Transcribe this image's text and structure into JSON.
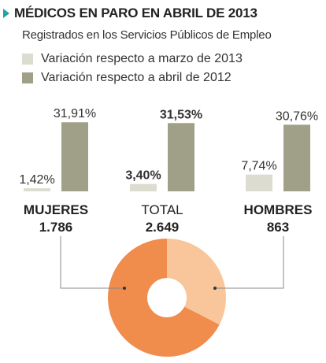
{
  "header": {
    "title": "MÉDICOS EN PARO EN ABRIL DE 2013",
    "subtitle": "Registrados en los Servicios Públicos de Empleo"
  },
  "legend": [
    {
      "label": "Variación respecto a marzo de 2013",
      "color": "#dcdcd0"
    },
    {
      "label": "Variación respecto a abril de 2012",
      "color": "#a0a088"
    }
  ],
  "colors": {
    "accent": "#1ea7a0",
    "bar_march": "#dcdcd0",
    "bar_april": "#a0a088",
    "pie_mujeres": "#f08c4c",
    "pie_hombres": "#f8c69a",
    "connector": "#888888"
  },
  "chart_data": [
    {
      "type": "bar",
      "categories": [
        "MUJERES",
        "TOTAL",
        "HOMBRES"
      ],
      "series": [
        {
          "name": "Variación respecto a marzo de 2013",
          "values": [
            1.42,
            3.4,
            7.74
          ],
          "labels": [
            "1,42%",
            "3,40%",
            "7,74%"
          ]
        },
        {
          "name": "Variación respecto a abril de 2012",
          "values": [
            31.91,
            31.53,
            30.76
          ],
          "labels": [
            "31,91%",
            "31,53%",
            "30,76%"
          ]
        }
      ],
      "category_counts": [
        "1.786",
        "2.649",
        "863"
      ],
      "bold_categories": [
        "MUJERES",
        "HOMBRES"
      ],
      "bold_value_category": "TOTAL",
      "ylim": [
        0,
        32
      ]
    },
    {
      "type": "pie",
      "donut": true,
      "labels": [
        "MUJERES",
        "HOMBRES"
      ],
      "values": [
        1786,
        863
      ]
    }
  ]
}
